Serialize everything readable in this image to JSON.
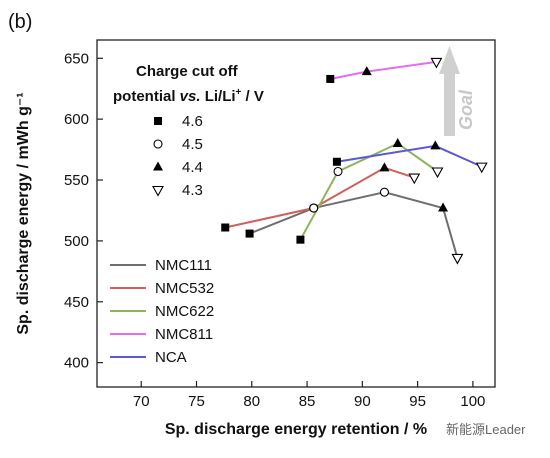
{
  "panel_label": "(b)",
  "goal_label": "Goal",
  "watermark": "新能源Leader",
  "chart_data": {
    "type": "scatter",
    "xlabel": "Sp. discharge energy retention / %",
    "ylabel": "Sp. discharge energy / mWh g⁻¹",
    "xlim": [
      66,
      102
    ],
    "ylim": [
      380,
      665
    ],
    "xticks": [
      70,
      75,
      80,
      85,
      90,
      95,
      100
    ],
    "yticks": [
      400,
      450,
      500,
      550,
      600,
      650
    ],
    "grid": false,
    "marker_legend": {
      "title_line1": "Charge cut off",
      "title_line2_prefix": "potential ",
      "title_line2_vs": "vs.",
      "title_line2_ref": " Li/Li",
      "title_line2_sup": "+",
      "title_line2_unit": " / V",
      "items": [
        {
          "label": "4.6",
          "marker": "filled-square"
        },
        {
          "label": "4.5",
          "marker": "open-circle"
        },
        {
          "label": "4.4",
          "marker": "filled-triangle"
        },
        {
          "label": "4.3",
          "marker": "open-triangle-down"
        }
      ]
    },
    "series": [
      {
        "name": "NMC111",
        "color": "#6e6e6e",
        "points": [
          [
            79.8,
            506,
            "4.6"
          ],
          [
            85.6,
            527,
            "4.5"
          ],
          [
            92.0,
            540,
            "4.5"
          ],
          [
            97.3,
            527,
            "4.4"
          ],
          [
            98.6,
            486,
            "4.3"
          ]
        ]
      },
      {
        "name": "NMC532",
        "color": "#d2605a",
        "points": [
          [
            77.6,
            511,
            "4.6"
          ],
          [
            85.6,
            527,
            "4.5"
          ],
          [
            92.0,
            560,
            "4.4"
          ],
          [
            94.7,
            552,
            "4.3"
          ]
        ]
      },
      {
        "name": "NMC622",
        "color": "#8db45b",
        "points": [
          [
            84.4,
            501,
            "4.6"
          ],
          [
            87.8,
            557,
            "4.5"
          ],
          [
            93.2,
            580,
            "4.4"
          ],
          [
            96.8,
            557,
            "4.3"
          ]
        ]
      },
      {
        "name": "NMC811",
        "color": "#e36df0",
        "points": [
          [
            87.1,
            633,
            "4.6"
          ],
          [
            90.4,
            639,
            "4.4"
          ],
          [
            96.7,
            647,
            "4.3"
          ]
        ]
      },
      {
        "name": "NCA",
        "color": "#5a58d8",
        "points": [
          [
            87.7,
            565,
            "4.6"
          ],
          [
            96.6,
            578,
            "4.4"
          ],
          [
            100.8,
            561,
            "4.3"
          ]
        ]
      }
    ]
  }
}
